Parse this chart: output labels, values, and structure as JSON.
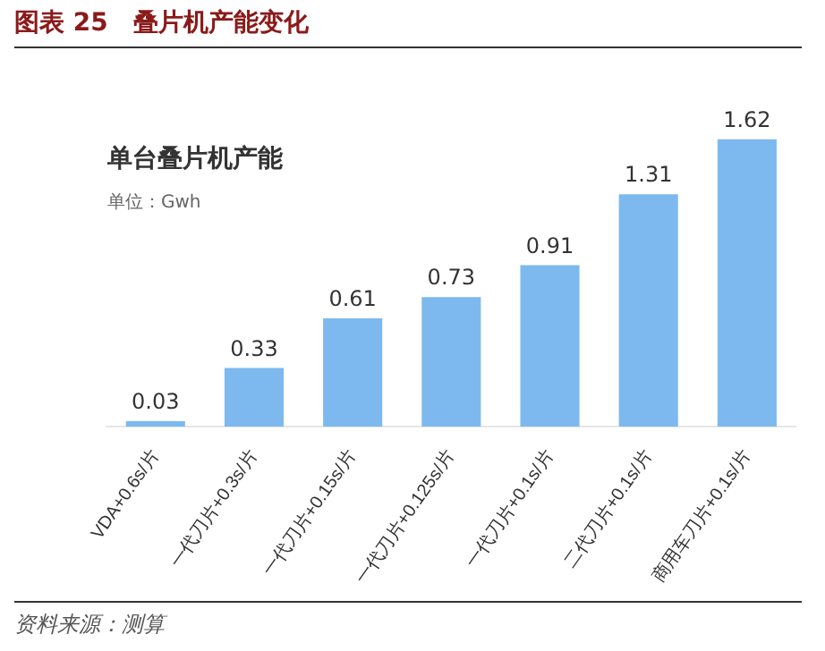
{
  "chart_data": {
    "type": "bar",
    "title": "图表 25　叠片机产能变化",
    "subtitle": "单台叠片机产能",
    "ylabel": "单位：Gwh",
    "categories": [
      "VDA+0.6s/片",
      "一代刀片+0.3s/片",
      "一代刀片+0.15s/片",
      "一代刀片+0.125s/片",
      "一代刀片+0.1s/片",
      "二代刀片+0.1s/片",
      "商用车刀片+0.1s/片"
    ],
    "values": [
      0.03,
      0.33,
      0.61,
      0.73,
      0.91,
      1.31,
      1.62
    ],
    "color": "#7db9ee",
    "data_labels": true,
    "relative": false,
    "grid": false,
    "legend": false,
    "annotations": [
      "资料来源：测算"
    ]
  }
}
